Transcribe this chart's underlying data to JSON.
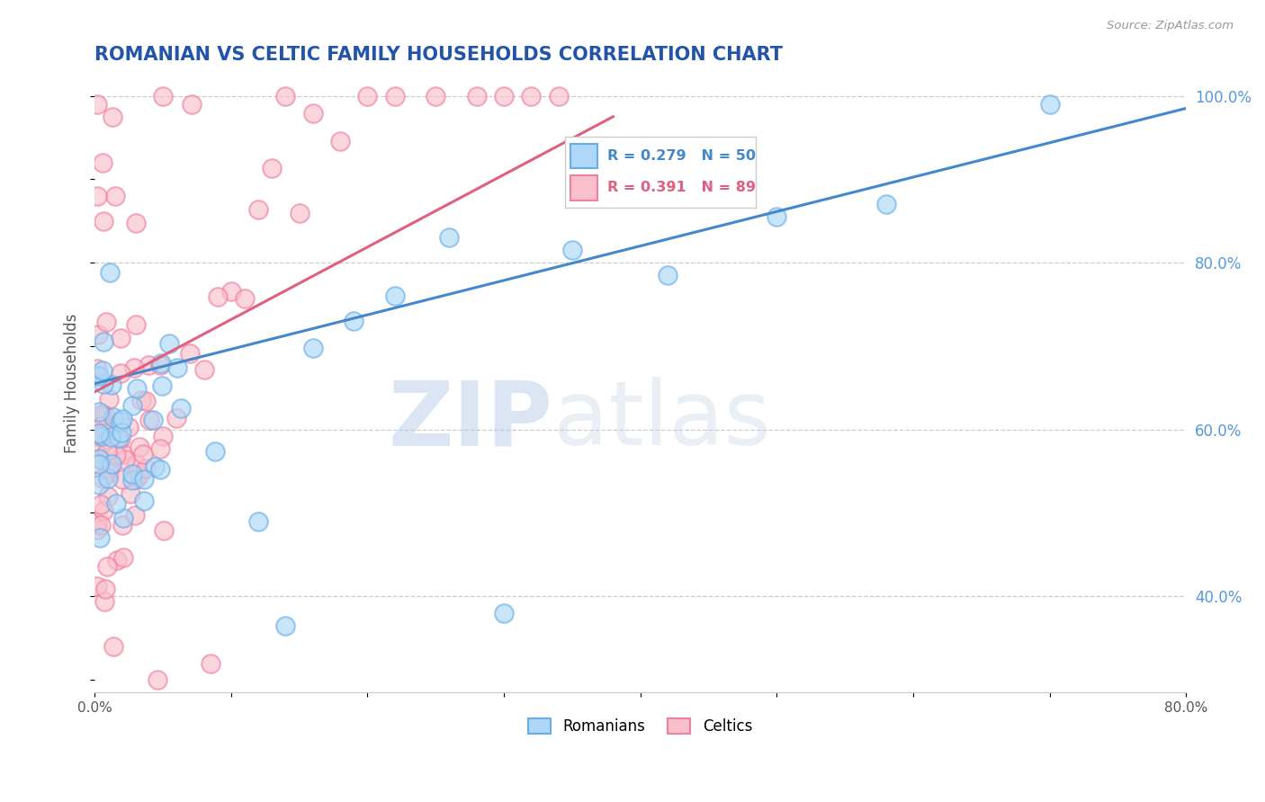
{
  "title": "ROMANIAN VS CELTIC FAMILY HOUSEHOLDS CORRELATION CHART",
  "source": "Source: ZipAtlas.com",
  "ylabel": "Family Households",
  "xlim": [
    0.0,
    0.8
  ],
  "ylim": [
    0.285,
    1.025
  ],
  "xticks": [
    0.0,
    0.1,
    0.2,
    0.3,
    0.4,
    0.5,
    0.6,
    0.7,
    0.8
  ],
  "xticklabels": [
    "0.0%",
    "",
    "",
    "",
    "",
    "",
    "",
    "",
    "80.0%"
  ],
  "yticks_right": [
    0.4,
    0.6,
    0.8,
    1.0
  ],
  "ytick_right_labels": [
    "40.0%",
    "60.0%",
    "80.0%",
    "100.0%"
  ],
  "grid_color": "#cccccc",
  "bg_color": "#ffffff",
  "blue_fill": "#add8f7",
  "blue_edge": "#6aaee8",
  "pink_fill": "#f9c0cc",
  "pink_edge": "#f080a0",
  "blue_line_color": "#4488cc",
  "pink_line_color": "#e06080",
  "title_color": "#2255aa",
  "source_color": "#999999",
  "watermark_color": "#d0e4f5",
  "legend_r_blue": "R = 0.279",
  "legend_n_blue": "N = 50",
  "legend_r_pink": "R = 0.391",
  "legend_n_pink": "N = 89",
  "romanians_label": "Romanians",
  "celtics_label": "Celtics",
  "blue_trend_x": [
    0.0,
    0.8
  ],
  "blue_trend_y": [
    0.655,
    0.985
  ],
  "pink_trend_x": [
    0.0,
    0.38
  ],
  "pink_trend_y": [
    0.645,
    0.975
  ]
}
